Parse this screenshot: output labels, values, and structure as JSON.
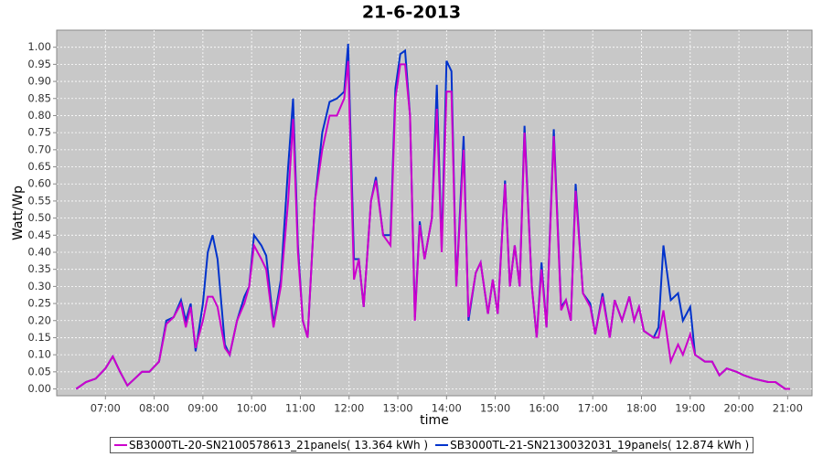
{
  "chart_data": {
    "type": "line",
    "title": "21-6-2013",
    "x_label": "time",
    "y_label": "Watt/Wp",
    "grid": true,
    "legend": "bottom",
    "xlim": [
      6.0,
      21.5
    ],
    "ylim": [
      -0.02,
      1.05
    ],
    "xticks": [
      {
        "value": 7,
        "label": "07:00"
      },
      {
        "value": 8,
        "label": "08:00"
      },
      {
        "value": 9,
        "label": "09:00"
      },
      {
        "value": 10,
        "label": "10:00"
      },
      {
        "value": 11,
        "label": "11:00"
      },
      {
        "value": 12,
        "label": "12:00"
      },
      {
        "value": 13,
        "label": "13:00"
      },
      {
        "value": 14,
        "label": "14:00"
      },
      {
        "value": 15,
        "label": "15:00"
      },
      {
        "value": 16,
        "label": "16:00"
      },
      {
        "value": 17,
        "label": "17:00"
      },
      {
        "value": 18,
        "label": "18:00"
      },
      {
        "value": 19,
        "label": "19:00"
      },
      {
        "value": 20,
        "label": "20:00"
      },
      {
        "value": 21,
        "label": "21:00"
      }
    ],
    "yticks": [
      {
        "value": 0,
        "label": "0.00"
      },
      {
        "value": 0.05,
        "label": "0.05"
      },
      {
        "value": 0.1,
        "label": "0.10"
      },
      {
        "value": 0.15,
        "label": "0.15"
      },
      {
        "value": 0.2,
        "label": "0.20"
      },
      {
        "value": 0.25,
        "label": "0.25"
      },
      {
        "value": 0.3,
        "label": "0.30"
      },
      {
        "value": 0.35,
        "label": "0.35"
      },
      {
        "value": 0.4,
        "label": "0.40"
      },
      {
        "value": 0.45,
        "label": "0.45"
      },
      {
        "value": 0.5,
        "label": "0.50"
      },
      {
        "value": 0.55,
        "label": "0.55"
      },
      {
        "value": 0.6,
        "label": "0.60"
      },
      {
        "value": 0.65,
        "label": "0.65"
      },
      {
        "value": 0.7,
        "label": "0.70"
      },
      {
        "value": 0.75,
        "label": "0.75"
      },
      {
        "value": 0.8,
        "label": "0.80"
      },
      {
        "value": 0.85,
        "label": "0.85"
      },
      {
        "value": 0.9,
        "label": "0.90"
      },
      {
        "value": 0.95,
        "label": "0.95"
      },
      {
        "value": 1,
        "label": "1.00"
      }
    ],
    "x": [
      6.4,
      6.6,
      6.8,
      7.0,
      7.15,
      7.3,
      7.45,
      7.6,
      7.75,
      7.9,
      8.1,
      8.25,
      8.4,
      8.55,
      8.65,
      8.75,
      8.85,
      9.0,
      9.1,
      9.2,
      9.3,
      9.45,
      9.55,
      9.7,
      9.85,
      9.95,
      10.05,
      10.2,
      10.3,
      10.45,
      10.6,
      10.75,
      10.85,
      10.95,
      11.05,
      11.15,
      11.3,
      11.45,
      11.6,
      11.75,
      11.9,
      11.98,
      12.1,
      12.2,
      12.3,
      12.45,
      12.55,
      12.7,
      12.85,
      12.95,
      13.05,
      13.15,
      13.25,
      13.35,
      13.45,
      13.55,
      13.7,
      13.8,
      13.9,
      14.0,
      14.1,
      14.2,
      14.35,
      14.45,
      14.6,
      14.7,
      14.85,
      14.95,
      15.05,
      15.2,
      15.3,
      15.4,
      15.5,
      15.6,
      15.75,
      15.85,
      15.95,
      16.05,
      16.2,
      16.35,
      16.45,
      16.55,
      16.65,
      16.8,
      16.95,
      17.05,
      17.2,
      17.35,
      17.45,
      17.6,
      17.75,
      17.85,
      17.95,
      18.05,
      18.25,
      18.35,
      18.45,
      18.6,
      18.75,
      18.85,
      19.0,
      19.1,
      19.3,
      19.45,
      19.6,
      19.75,
      19.95,
      20.1,
      20.3,
      20.6,
      20.75,
      20.95,
      21.05
    ],
    "series": [
      {
        "name": "SB3000TL-20-SN2100578613_21panels( 13.364 kWh )",
        "color": "#cc00cc",
        "values": [
          0.0,
          0.02,
          0.03,
          0.06,
          0.095,
          0.05,
          0.01,
          0.03,
          0.05,
          0.05,
          0.08,
          0.19,
          0.21,
          0.25,
          0.18,
          0.24,
          0.12,
          0.2,
          0.27,
          0.27,
          0.24,
          0.12,
          0.1,
          0.2,
          0.25,
          0.3,
          0.42,
          0.38,
          0.35,
          0.18,
          0.3,
          0.55,
          0.79,
          0.4,
          0.2,
          0.15,
          0.55,
          0.7,
          0.8,
          0.8,
          0.85,
          0.96,
          0.32,
          0.38,
          0.24,
          0.55,
          0.61,
          0.45,
          0.42,
          0.85,
          0.95,
          0.95,
          0.8,
          0.2,
          0.48,
          0.38,
          0.5,
          0.82,
          0.4,
          0.87,
          0.87,
          0.3,
          0.7,
          0.21,
          0.34,
          0.37,
          0.22,
          0.32,
          0.22,
          0.6,
          0.3,
          0.42,
          0.3,
          0.75,
          0.3,
          0.15,
          0.35,
          0.18,
          0.74,
          0.23,
          0.26,
          0.2,
          0.58,
          0.28,
          0.24,
          0.16,
          0.27,
          0.15,
          0.26,
          0.2,
          0.27,
          0.2,
          0.24,
          0.17,
          0.15,
          0.15,
          0.23,
          0.08,
          0.13,
          0.1,
          0.16,
          0.1,
          0.08,
          0.08,
          0.04,
          0.06,
          0.05,
          0.04,
          0.03,
          0.02,
          0.02,
          0.0,
          0.0
        ]
      },
      {
        "name": "SB3000TL-21-SN2130032031_19panels( 12.874 kWh )",
        "color": "#0033cc",
        "values": [
          0.0,
          0.02,
          0.03,
          0.06,
          0.095,
          0.05,
          0.01,
          0.03,
          0.05,
          0.05,
          0.08,
          0.2,
          0.21,
          0.26,
          0.2,
          0.25,
          0.11,
          0.25,
          0.4,
          0.45,
          0.38,
          0.13,
          0.1,
          0.2,
          0.27,
          0.3,
          0.45,
          0.42,
          0.39,
          0.19,
          0.32,
          0.65,
          0.85,
          0.42,
          0.2,
          0.15,
          0.55,
          0.75,
          0.84,
          0.85,
          0.87,
          1.01,
          0.38,
          0.38,
          0.24,
          0.55,
          0.62,
          0.45,
          0.45,
          0.88,
          0.98,
          0.99,
          0.8,
          0.21,
          0.49,
          0.38,
          0.5,
          0.89,
          0.41,
          0.96,
          0.93,
          0.3,
          0.74,
          0.2,
          0.34,
          0.37,
          0.22,
          0.32,
          0.22,
          0.61,
          0.3,
          0.42,
          0.3,
          0.77,
          0.3,
          0.15,
          0.37,
          0.18,
          0.76,
          0.24,
          0.26,
          0.2,
          0.6,
          0.28,
          0.25,
          0.16,
          0.28,
          0.15,
          0.26,
          0.2,
          0.27,
          0.2,
          0.24,
          0.17,
          0.15,
          0.18,
          0.42,
          0.26,
          0.28,
          0.2,
          0.24,
          0.1,
          0.08,
          0.08,
          0.04,
          0.06,
          0.05,
          0.04,
          0.03,
          0.02,
          0.02,
          0.0,
          0.0
        ]
      }
    ]
  }
}
